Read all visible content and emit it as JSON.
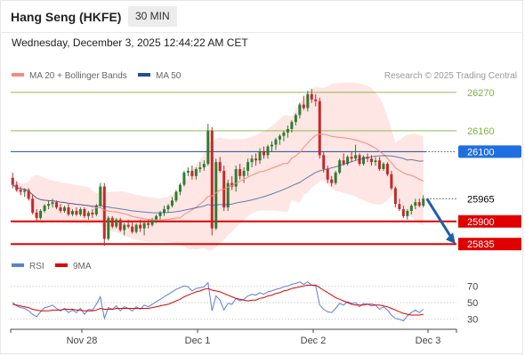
{
  "header": {
    "title": "Hang Seng (HKFE)",
    "timeframe": "30 MIN",
    "datetime": "Wednesday, December 3, 2025 12:44:22 AM CET",
    "credit": "Research © 2025 Trading Central"
  },
  "legend": {
    "ma_bollinger": "MA 20 + Bollinger Bands",
    "ma_50": "MA 50",
    "rsi": "RSI",
    "rsi_ma": "9MA"
  },
  "colors": {
    "ma_bollinger": "#f28b82",
    "bollinger_fill": "#fde0dd",
    "ma_50": "#1f4e99",
    "rsi": "#5b7fd6",
    "rsi_ma": "#e00000",
    "resistance": "#7cb342",
    "support": "#e00000",
    "pivot": "#1f4e99",
    "arrow": "#1f5fa8",
    "up_candle": "#2e7d32",
    "down_candle": "#c62828"
  },
  "chart_data": [
    {
      "type": "candlestick",
      "title": "Hang Seng (HKFE) 30 MIN",
      "x_labels": [
        "Nov 28",
        "Dec 1",
        "Dec 2",
        "Dec 3"
      ],
      "ylim": [
        25810,
        26290
      ],
      "levels": [
        {
          "label": "26270",
          "value": 26270,
          "kind": "resistance"
        },
        {
          "label": "26160",
          "value": 26160,
          "kind": "resistance"
        },
        {
          "label": "26100",
          "value": 26100,
          "kind": "pivot"
        },
        {
          "label": "25965",
          "value": 25965,
          "kind": "last"
        },
        {
          "label": "25900",
          "value": 25900,
          "kind": "support"
        },
        {
          "label": "25835",
          "value": 25835,
          "kind": "support"
        }
      ],
      "last_price": 25965,
      "forecast_target": 25835,
      "ohlc": [
        [
          26025,
          26040,
          25995,
          26005
        ],
        [
          26005,
          26015,
          25985,
          25990
        ],
        [
          25990,
          26000,
          25975,
          25985
        ],
        [
          25985,
          25995,
          25970,
          25990
        ],
        [
          25990,
          25995,
          25960,
          25965
        ],
        [
          25965,
          25975,
          25920,
          25925
        ],
        [
          25925,
          25935,
          25900,
          25910
        ],
        [
          25910,
          25935,
          25905,
          25930
        ],
        [
          25930,
          25950,
          25925,
          25945
        ],
        [
          25945,
          25960,
          25935,
          25950
        ],
        [
          25950,
          25965,
          25940,
          25955
        ],
        [
          25955,
          25960,
          25935,
          25940
        ],
        [
          25940,
          25950,
          25925,
          25930
        ],
        [
          25930,
          25945,
          25925,
          25940
        ],
        [
          25940,
          25950,
          25915,
          25920
        ],
        [
          25920,
          25935,
          25915,
          25930
        ],
        [
          25930,
          25940,
          25915,
          25920
        ],
        [
          25920,
          25940,
          25915,
          25935
        ],
        [
          25935,
          25940,
          25910,
          25915
        ],
        [
          25915,
          25930,
          25905,
          25925
        ],
        [
          25925,
          25935,
          25910,
          25920
        ],
        [
          25920,
          25950,
          25915,
          25945
        ],
        [
          25945,
          26010,
          25940,
          26000
        ],
        [
          26000,
          26010,
          25830,
          25850
        ],
        [
          25850,
          25915,
          25845,
          25910
        ],
        [
          25910,
          25915,
          25880,
          25885
        ],
        [
          25885,
          25910,
          25880,
          25905
        ],
        [
          25905,
          25910,
          25870,
          25875
        ],
        [
          25875,
          25895,
          25860,
          25890
        ],
        [
          25890,
          25905,
          25880,
          25885
        ],
        [
          25885,
          25900,
          25865,
          25870
        ],
        [
          25870,
          25895,
          25865,
          25890
        ],
        [
          25890,
          25905,
          25870,
          25880
        ],
        [
          25880,
          25900,
          25860,
          25895
        ],
        [
          25895,
          25905,
          25880,
          25890
        ],
        [
          25890,
          25910,
          25885,
          25905
        ],
        [
          25905,
          25920,
          25895,
          25915
        ],
        [
          25915,
          25930,
          25905,
          25925
        ],
        [
          25925,
          25945,
          25915,
          25935
        ],
        [
          25935,
          25950,
          25925,
          25945
        ],
        [
          25945,
          25970,
          25940,
          25960
        ],
        [
          25960,
          25990,
          25955,
          25985
        ],
        [
          25985,
          26010,
          25975,
          26005
        ],
        [
          26005,
          26045,
          26000,
          26040
        ],
        [
          26040,
          26055,
          26030,
          26045
        ],
        [
          26045,
          26060,
          26020,
          26030
        ],
        [
          26030,
          26055,
          26020,
          26050
        ],
        [
          26050,
          26070,
          26040,
          26055
        ],
        [
          26055,
          26075,
          26045,
          26065
        ],
        [
          26065,
          26180,
          26060,
          26160
        ],
        [
          26160,
          26170,
          25860,
          25880
        ],
        [
          25880,
          26080,
          25875,
          26070
        ],
        [
          26070,
          26085,
          26040,
          26045
        ],
        [
          26045,
          26060,
          25930,
          25940
        ],
        [
          25940,
          26020,
          25930,
          26010
        ],
        [
          26010,
          26030,
          25990,
          26000
        ],
        [
          26000,
          26060,
          25985,
          26050
        ],
        [
          26050,
          26065,
          26020,
          26030
        ],
        [
          26030,
          26055,
          26010,
          26045
        ],
        [
          26045,
          26080,
          26030,
          26070
        ],
        [
          26070,
          26090,
          26055,
          26080
        ],
        [
          26080,
          26095,
          26060,
          26075
        ],
        [
          26075,
          26110,
          26065,
          26100
        ],
        [
          26100,
          26115,
          26080,
          26090
        ],
        [
          26090,
          26120,
          26080,
          26115
        ],
        [
          26115,
          26130,
          26100,
          26120
        ],
        [
          26120,
          26140,
          26105,
          26135
        ],
        [
          26135,
          26150,
          26120,
          26145
        ],
        [
          26145,
          26160,
          26130,
          26155
        ],
        [
          26155,
          26175,
          26140,
          26165
        ],
        [
          26165,
          26190,
          26155,
          26185
        ],
        [
          26185,
          26210,
          26175,
          26205
        ],
        [
          26205,
          26240,
          26195,
          26235
        ],
        [
          26235,
          26260,
          26220,
          26225
        ],
        [
          26225,
          26275,
          26215,
          26265
        ],
        [
          26265,
          26280,
          26240,
          26250
        ],
        [
          26250,
          26265,
          26230,
          26245
        ],
        [
          26245,
          26255,
          26080,
          26090
        ],
        [
          26090,
          26100,
          26040,
          26050
        ],
        [
          26050,
          26060,
          26010,
          26020
        ],
        [
          26020,
          26030,
          26000,
          26010
        ],
        [
          26010,
          26045,
          26005,
          26040
        ],
        [
          26040,
          26080,
          26035,
          26075
        ],
        [
          26075,
          26095,
          26060,
          26065
        ],
        [
          26065,
          26090,
          26060,
          26085
        ],
        [
          26085,
          26100,
          26070,
          26080
        ],
        [
          26080,
          26120,
          26075,
          26090
        ],
        [
          26090,
          26095,
          26060,
          26065
        ],
        [
          26065,
          26090,
          26060,
          26085
        ],
        [
          26085,
          26095,
          26070,
          26080
        ],
        [
          26080,
          26090,
          26060,
          26070
        ],
        [
          26070,
          26085,
          26060,
          26075
        ],
        [
          26075,
          26085,
          26045,
          26050
        ],
        [
          26050,
          26070,
          26045,
          26065
        ],
        [
          26065,
          26070,
          26030,
          26035
        ],
        [
          26035,
          26045,
          25990,
          25995
        ],
        [
          25995,
          26000,
          25940,
          25950
        ],
        [
          25950,
          25965,
          25930,
          25935
        ],
        [
          25935,
          25945,
          25910,
          25915
        ],
        [
          25915,
          25935,
          25905,
          25930
        ],
        [
          25930,
          25950,
          25920,
          25945
        ],
        [
          25945,
          25965,
          25935,
          25955
        ],
        [
          25955,
          25965,
          25940,
          25945
        ],
        [
          25945,
          25975,
          25940,
          25965
        ]
      ]
    },
    {
      "type": "line",
      "title": "RSI",
      "y_ticks": [
        70,
        50,
        30
      ],
      "ylim": [
        20,
        80
      ],
      "series": [
        {
          "name": "RSI",
          "values": [
            50,
            46,
            44,
            43,
            40,
            36,
            33,
            39,
            44,
            45,
            47,
            43,
            40,
            43,
            38,
            41,
            38,
            43,
            36,
            42,
            41,
            48,
            57,
            31,
            44,
            42,
            46,
            40,
            45,
            43,
            40,
            45,
            42,
            47,
            45,
            48,
            51,
            54,
            57,
            60,
            63,
            66,
            68,
            70,
            69,
            64,
            67,
            68,
            69,
            74,
            40,
            58,
            53,
            41,
            49,
            48,
            55,
            52,
            54,
            58,
            60,
            59,
            62,
            60,
            63,
            64,
            66,
            67,
            69,
            70,
            72,
            73,
            75,
            72,
            75,
            71,
            70,
            47,
            42,
            39,
            38,
            43,
            49,
            47,
            51,
            49,
            50,
            45,
            49,
            48,
            46,
            47,
            42,
            45,
            41,
            35,
            31,
            30,
            28,
            34,
            38,
            41,
            38,
            42
          ]
        },
        {
          "name": "9MA",
          "values": [
            48,
            47,
            46,
            45,
            44,
            42,
            41,
            40,
            40,
            40,
            41,
            41,
            41,
            42,
            42,
            42,
            41,
            41,
            40,
            40,
            40,
            41,
            43,
            42,
            42,
            42,
            43,
            43,
            43,
            43,
            43,
            43,
            43,
            43,
            43,
            44,
            45,
            46,
            47,
            48,
            50,
            52,
            54,
            57,
            59,
            61,
            63,
            64,
            66,
            67,
            65,
            64,
            63,
            61,
            59,
            57,
            55,
            54,
            53,
            52,
            53,
            53,
            55,
            56,
            58,
            59,
            61,
            62,
            64,
            65,
            67,
            68,
            69,
            70,
            71,
            71,
            71,
            68,
            65,
            62,
            59,
            56,
            54,
            52,
            50,
            48,
            47,
            47,
            47,
            48,
            48,
            47,
            47,
            46,
            45,
            43,
            41,
            39,
            37,
            36,
            35,
            35,
            35,
            36
          ]
        }
      ]
    }
  ]
}
